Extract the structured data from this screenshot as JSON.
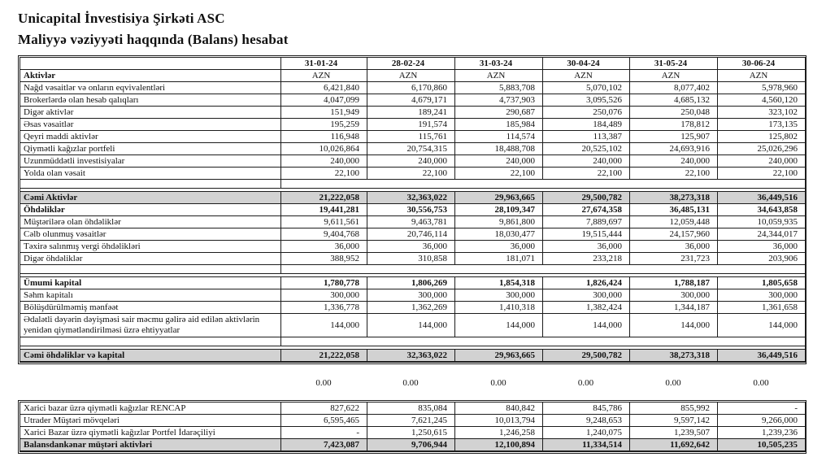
{
  "header": {
    "company": "Unicapital İnvestisiya Şirkəti ASC",
    "report": "Maliyyə vəziyyəti haqqında (Balans) hesabat"
  },
  "colors": {
    "shaded_row_bg": "#d2d2d2",
    "border": "#1c1c1c"
  },
  "main_table": {
    "rows": [
      {
        "style": "dates",
        "label": "",
        "values": [
          "31-01-24",
          "28-02-24",
          "31-03-24",
          "30-04-24",
          "31-05-24",
          "30-06-24"
        ]
      },
      {
        "style": "currency",
        "label": "Aktivlər",
        "values": [
          "AZN",
          "AZN",
          "AZN",
          "AZN",
          "AZN",
          "AZN"
        ]
      },
      {
        "style": "data",
        "label": "Nağd vəsaitlər və onların eqvivalentləri",
        "values": [
          "6,421,840",
          "6,170,860",
          "5,883,708",
          "5,070,102",
          "8,077,402",
          "5,978,960"
        ]
      },
      {
        "style": "data",
        "label": "Brokerlərdə olan hesab qalıqları",
        "values": [
          "4,047,099",
          "4,679,171",
          "4,737,903",
          "3,095,526",
          "4,685,132",
          "4,560,120"
        ]
      },
      {
        "style": "data",
        "label": "Digər aktivlər",
        "values": [
          "151,949",
          "189,241",
          "290,687",
          "250,076",
          "250,048",
          "323,102"
        ]
      },
      {
        "style": "data",
        "label": "Əsas vəsaitlər",
        "values": [
          "195,259",
          "191,574",
          "185,984",
          "184,489",
          "178,812",
          "173,135"
        ]
      },
      {
        "style": "data",
        "label": "Qeyri maddi aktivlər",
        "values": [
          "116,948",
          "115,761",
          "114,574",
          "113,387",
          "125,907",
          "125,802"
        ]
      },
      {
        "style": "data",
        "label": "Qiymətli kağızlar portfeli",
        "values": [
          "10,026,864",
          "20,754,315",
          "18,488,708",
          "20,525,102",
          "24,693,916",
          "25,026,296"
        ]
      },
      {
        "style": "data",
        "label": "Uzunmüddətli investisiyalar",
        "values": [
          "240,000",
          "240,000",
          "240,000",
          "240,000",
          "240,000",
          "240,000"
        ]
      },
      {
        "style": "data",
        "label": "Yolda olan vəsait",
        "values": [
          "22,100",
          "22,100",
          "22,100",
          "22,100",
          "22,100",
          "22,100"
        ]
      },
      {
        "style": "empty"
      },
      {
        "style": "spacer"
      },
      {
        "style": "total",
        "label": "Cəmi Aktivlər",
        "values": [
          "21,222,058",
          "32,363,022",
          "29,963,665",
          "29,500,782",
          "38,273,318",
          "36,449,516"
        ]
      },
      {
        "style": "section",
        "label": "Öhdəliklər",
        "values": [
          "19,441,281",
          "30,556,753",
          "28,109,347",
          "27,674,358",
          "36,485,131",
          "34,643,858"
        ]
      },
      {
        "style": "data",
        "label": "Müştərilərə olan öhdəliklər",
        "values": [
          "9,611,561",
          "9,463,781",
          "9,861,800",
          "7,889,697",
          "12,059,448",
          "10,059,935"
        ]
      },
      {
        "style": "data",
        "label": "Cəlb olunmuş vəsaitlər",
        "values": [
          "9,404,768",
          "20,746,114",
          "18,030,477",
          "19,515,444",
          "24,157,960",
          "24,344,017"
        ]
      },
      {
        "style": "data",
        "label": "Təxirə salınmış vergi öhdəlikləri",
        "values": [
          "36,000",
          "36,000",
          "36,000",
          "36,000",
          "36,000",
          "36,000"
        ]
      },
      {
        "style": "data",
        "label": "Digər öhdəliklər",
        "values": [
          "388,952",
          "310,858",
          "181,071",
          "233,218",
          "231,723",
          "203,906"
        ]
      },
      {
        "style": "empty"
      },
      {
        "style": "spacer"
      },
      {
        "style": "section",
        "label": "Ümumi kapital",
        "values": [
          "1,780,778",
          "1,806,269",
          "1,854,318",
          "1,826,424",
          "1,788,187",
          "1,805,658"
        ]
      },
      {
        "style": "data",
        "label": "Səhm kapitalı",
        "values": [
          "300,000",
          "300,000",
          "300,000",
          "300,000",
          "300,000",
          "300,000"
        ]
      },
      {
        "style": "data",
        "label": "Bölüşdürülməmiş mənfəət",
        "values": [
          "1,336,778",
          "1,362,269",
          "1,410,318",
          "1,382,424",
          "1,344,187",
          "1,361,658"
        ]
      },
      {
        "style": "data",
        "tall": true,
        "label": "Ədalətli dəyərin dəyişməsi sair məcmu gəlirə aid edilən aktivlərin yenidən qiymətləndirilməsi üzrə ehtiyyatlar",
        "values": [
          "144,000",
          "144,000",
          "144,000",
          "144,000",
          "144,000",
          "144,000"
        ]
      },
      {
        "style": "empty"
      },
      {
        "style": "spacer"
      },
      {
        "style": "total",
        "last": true,
        "label": "Cəmi öhdəliklər və kapital",
        "values": [
          "21,222,058",
          "32,363,022",
          "29,963,665",
          "29,500,782",
          "38,273,318",
          "36,449,516"
        ]
      }
    ]
  },
  "zero_row": {
    "label": "",
    "values": [
      "0.00",
      "0.00",
      "0.00",
      "0.00",
      "0.00",
      "0.00"
    ]
  },
  "offbalance_table": {
    "rows": [
      {
        "style": "data",
        "label": "Xarici bazar üzrə qiymətli kağızlar RENCAP",
        "values": [
          "827,622",
          "835,084",
          "840,842",
          "845,786",
          "855,992",
          "-"
        ]
      },
      {
        "style": "data",
        "label": "Utrader Müştəri mövqeləri",
        "values": [
          "6,595,465",
          "7,621,245",
          "10,013,794",
          "9,248,653",
          "9,597,142",
          "9,266,000"
        ]
      },
      {
        "style": "data",
        "label": "Xarici Bazar üzrə qiymətli kağızlar Portfel İdarəçiliyi",
        "values": [
          "-",
          "1,250,615",
          "1,246,258",
          "1,240,075",
          "1,239,507",
          "1,239,236"
        ]
      },
      {
        "style": "total",
        "last": true,
        "label": "Balansdankənar müştəri aktivləri",
        "values": [
          "7,423,087",
          "9,706,944",
          "12,100,894",
          "11,334,514",
          "11,692,642",
          "10,505,235"
        ]
      }
    ]
  }
}
